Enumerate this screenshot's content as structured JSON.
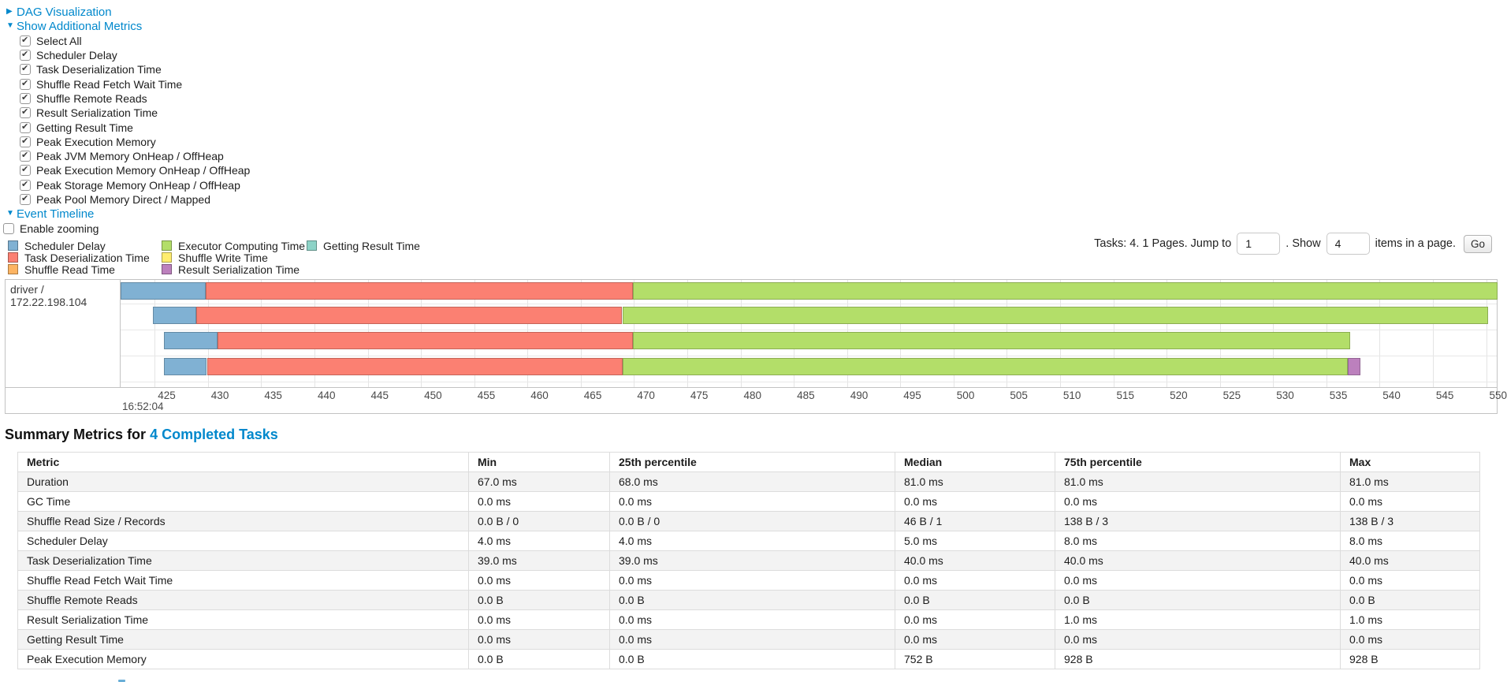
{
  "colors": {
    "link": "#0088cc",
    "scheduler_delay": "#80B1D3",
    "task_deserialization_time": "#FB8072",
    "shuffle_read_time": "#FDB462",
    "executor_computing_time": "#B3DE69",
    "shuffle_write_time": "#FFED6F",
    "result_serialization_time": "#BC80BD",
    "getting_result_time": "#8DD3C7"
  },
  "nav": {
    "dag_visualization": {
      "label": "DAG Visualization",
      "expanded": false
    },
    "show_additional_metrics": {
      "label": "Show Additional Metrics",
      "expanded": true
    },
    "event_timeline": {
      "label": "Event Timeline",
      "expanded": true
    }
  },
  "metric_checkboxes": [
    {
      "label": "Select All",
      "checked": true
    },
    {
      "label": "Scheduler Delay",
      "checked": true
    },
    {
      "label": "Task Deserialization Time",
      "checked": true
    },
    {
      "label": "Shuffle Read Fetch Wait Time",
      "checked": true
    },
    {
      "label": "Shuffle Remote Reads",
      "checked": true
    },
    {
      "label": "Result Serialization Time",
      "checked": true
    },
    {
      "label": "Getting Result Time",
      "checked": true
    },
    {
      "label": "Peak Execution Memory",
      "checked": true
    },
    {
      "label": "Peak JVM Memory OnHeap / OffHeap",
      "checked": true
    },
    {
      "label": "Peak Execution Memory OnHeap / OffHeap",
      "checked": true
    },
    {
      "label": "Peak Storage Memory OnHeap / OffHeap",
      "checked": true
    },
    {
      "label": "Peak Pool Memory Direct / Mapped",
      "checked": true
    }
  ],
  "enable_zooming": {
    "label": "Enable zooming",
    "checked": false
  },
  "legend": {
    "columns": [
      [
        {
          "label": "Scheduler Delay",
          "color_key": "scheduler_delay"
        },
        {
          "label": "Task Deserialization Time",
          "color_key": "task_deserialization_time"
        },
        {
          "label": "Shuffle Read Time",
          "color_key": "shuffle_read_time"
        }
      ],
      [
        {
          "label": "Executor Computing Time",
          "color_key": "executor_computing_time"
        },
        {
          "label": "Shuffle Write Time",
          "color_key": "shuffle_write_time"
        },
        {
          "label": "Result Serialization Time",
          "color_key": "result_serialization_time"
        }
      ],
      [
        {
          "label": "Getting Result Time",
          "color_key": "getting_result_time"
        }
      ]
    ]
  },
  "pagination": {
    "tasks_text": "Tasks: 4. 1 Pages. Jump to",
    "jump_value": "1",
    "show_text": ". Show",
    "show_value": "4",
    "items_text": "items in a page.",
    "go_label": "Go"
  },
  "timeline_chart": {
    "type": "gantt-timeline",
    "group_label": "driver / 172.22.198.104",
    "axis": {
      "domain_ms": [
        421.8,
        551.0
      ],
      "ticks": [
        425,
        430,
        435,
        440,
        445,
        450,
        455,
        460,
        465,
        470,
        475,
        480,
        485,
        490,
        495,
        500,
        505,
        510,
        515,
        520,
        525,
        530,
        535,
        540,
        545,
        550
      ],
      "second_label": "16:52:04"
    },
    "tasks": [
      {
        "segments": [
          {
            "name": "scheduler_delay",
            "start": 421.8,
            "end": 429.8
          },
          {
            "name": "task_deserialization_time",
            "start": 429.8,
            "end": 469.9
          },
          {
            "name": "executor_computing_time",
            "start": 469.9,
            "end": 551.1
          }
        ]
      },
      {
        "segments": [
          {
            "name": "scheduler_delay",
            "start": 424.8,
            "end": 428.9
          },
          {
            "name": "task_deserialization_time",
            "start": 428.9,
            "end": 468.9
          },
          {
            "name": "executor_computing_time",
            "start": 468.9,
            "end": 550.2
          }
        ]
      },
      {
        "segments": [
          {
            "name": "scheduler_delay",
            "start": 425.9,
            "end": 430.9
          },
          {
            "name": "task_deserialization_time",
            "start": 430.9,
            "end": 469.9
          },
          {
            "name": "executor_computing_time",
            "start": 469.9,
            "end": 537.2
          }
        ]
      },
      {
        "segments": [
          {
            "name": "scheduler_delay",
            "start": 425.9,
            "end": 429.9
          },
          {
            "name": "task_deserialization_time",
            "start": 429.9,
            "end": 468.9
          },
          {
            "name": "executor_computing_time",
            "start": 468.9,
            "end": 537.0
          },
          {
            "name": "result_serialization_time",
            "start": 537.0,
            "end": 538.2
          }
        ]
      }
    ]
  },
  "summary": {
    "title_prefix": "Summary Metrics for",
    "title_link": "4 Completed Tasks",
    "table": {
      "headers": [
        "Metric",
        "Min",
        "25th percentile",
        "Median",
        "75th percentile",
        "Max"
      ],
      "rows": [
        [
          "Duration",
          "67.0 ms",
          "68.0 ms",
          "81.0 ms",
          "81.0 ms",
          "81.0 ms"
        ],
        [
          "GC Time",
          "0.0 ms",
          "0.0 ms",
          "0.0 ms",
          "0.0 ms",
          "0.0 ms"
        ],
        [
          "Shuffle Read Size / Records",
          "0.0 B / 0",
          "0.0 B / 0",
          "46 B / 1",
          "138 B / 3",
          "138 B / 3"
        ],
        [
          "Scheduler Delay",
          "4.0 ms",
          "4.0 ms",
          "5.0 ms",
          "8.0 ms",
          "8.0 ms"
        ],
        [
          "Task Deserialization Time",
          "39.0 ms",
          "39.0 ms",
          "40.0 ms",
          "40.0 ms",
          "40.0 ms"
        ],
        [
          "Shuffle Read Fetch Wait Time",
          "0.0 ms",
          "0.0 ms",
          "0.0 ms",
          "0.0 ms",
          "0.0 ms"
        ],
        [
          "Shuffle Remote Reads",
          "0.0 B",
          "0.0 B",
          "0.0 B",
          "0.0 B",
          "0.0 B"
        ],
        [
          "Result Serialization Time",
          "0.0 ms",
          "0.0 ms",
          "0.0 ms",
          "1.0 ms",
          "1.0 ms"
        ],
        [
          "Getting Result Time",
          "0.0 ms",
          "0.0 ms",
          "0.0 ms",
          "0.0 ms",
          "0.0 ms"
        ],
        [
          "Peak Execution Memory",
          "0.0 B",
          "0.0 B",
          "752 B",
          "928 B",
          "928 B"
        ]
      ]
    }
  }
}
